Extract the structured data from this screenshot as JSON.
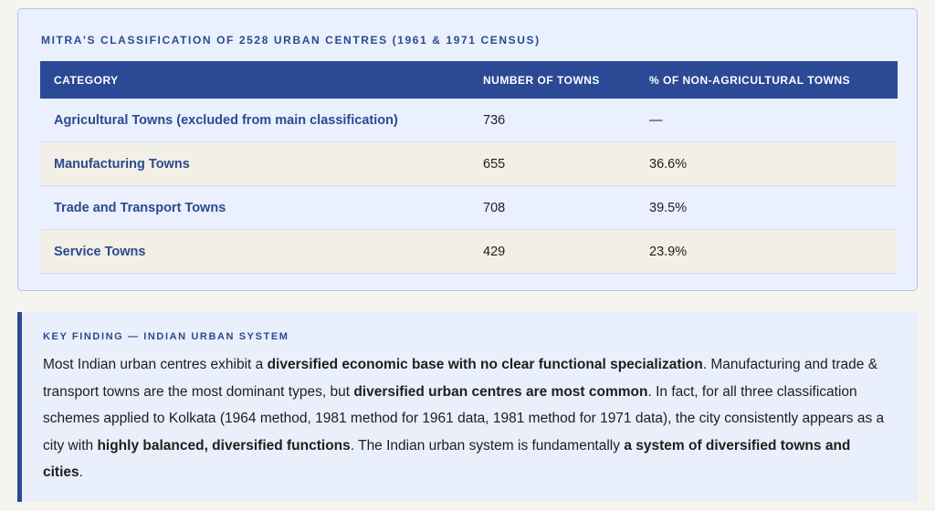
{
  "classification": {
    "title": "MITRA'S CLASSIFICATION OF 2528 URBAN CENTRES (1961 & 1971 CENSUS)",
    "headers": [
      "CATEGORY",
      "NUMBER OF TOWNS",
      "% OF NON-AGRICULTURAL TOWNS"
    ],
    "rows": [
      {
        "category": "Agricultural Towns (excluded from main classification)",
        "towns": "736",
        "percent": "—"
      },
      {
        "category": "Manufacturing Towns",
        "towns": "655",
        "percent": "36.6%"
      },
      {
        "category": "Trade and Transport Towns",
        "towns": "708",
        "percent": "39.5%"
      },
      {
        "category": "Service Towns",
        "towns": "429",
        "percent": "23.9%"
      }
    ]
  },
  "finding": {
    "label": "KEY FINDING — INDIAN URBAN SYSTEM",
    "p1": "Most Indian urban centres exhibit a ",
    "b1": "diversified economic base with no clear functional specialization",
    "p2": ". Manufacturing and trade & transport towns are the most dominant types, but ",
    "b2": "diversified urban centres are most common",
    "p3": ". In fact, for all three classification schemes applied to Kolkata (1964 method, 1981 method for 1961 data, 1981 method for 1971 data), the city consistently appears as a city with ",
    "b3": "highly balanced, diversified functions",
    "p4": ". The Indian urban system is fundamentally ",
    "b4": "a system of diversified towns and cities",
    "p5": "."
  }
}
